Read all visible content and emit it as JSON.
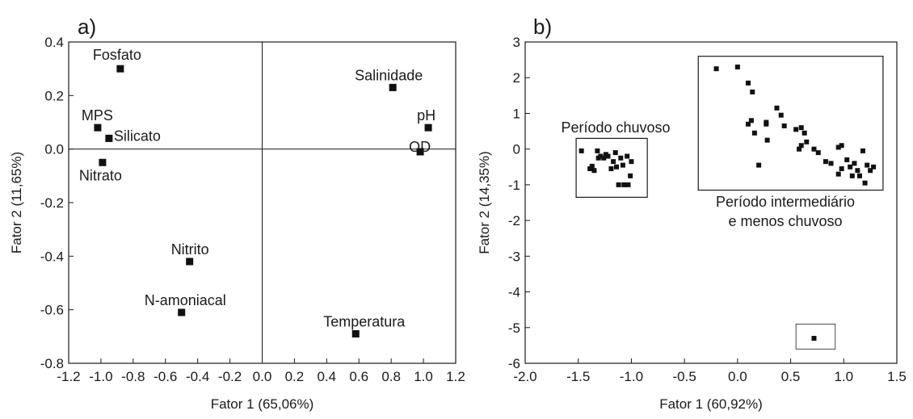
{
  "chart_data": [
    {
      "type": "scatter",
      "panel_label": "a)",
      "xlabel": "Fator 1 (65,06%)",
      "ylabel": "Fator 2 (11,65%)",
      "xlim": [
        -1.2,
        1.2
      ],
      "ylim": [
        -0.8,
        0.4
      ],
      "xticks": [
        -1.2,
        -1.0,
        -0.8,
        -0.6,
        -0.4,
        -0.2,
        0.0,
        0.2,
        0.4,
        0.6,
        0.8,
        1.0,
        1.2
      ],
      "xtick_labels": [
        "-1.2",
        "-1.0",
        "-0.8",
        "-0.6",
        "-0.4",
        "-0.2",
        "0.0",
        "0.2",
        "0.4",
        "0.6",
        "0.8",
        "1.0",
        "1.2"
      ],
      "yticks": [
        -0.8,
        -0.6,
        -0.4,
        -0.2,
        0.0,
        0.2,
        0.4
      ],
      "ytick_labels": [
        "-0.8",
        "-0.6",
        "-0.4",
        "-0.2",
        "0.0",
        "0.2",
        "0.4"
      ],
      "reference_lines": {
        "x": 0,
        "y": 0
      },
      "grid": false,
      "points": [
        {
          "label": "Fosfato",
          "x": -0.88,
          "y": 0.3
        },
        {
          "label": "MPS",
          "x": -1.02,
          "y": 0.08
        },
        {
          "label": "Silicato",
          "x": -0.95,
          "y": 0.04
        },
        {
          "label": "Nitrato",
          "x": -0.99,
          "y": -0.05
        },
        {
          "label": "Nitrito",
          "x": -0.45,
          "y": -0.42
        },
        {
          "label": "N-amoniacal",
          "x": -0.5,
          "y": -0.61
        },
        {
          "label": "Salinidade",
          "x": 0.81,
          "y": 0.23
        },
        {
          "label": "pH",
          "x": 1.03,
          "y": 0.08
        },
        {
          "label": "OD",
          "x": 0.98,
          "y": -0.01
        },
        {
          "label": "Temperatura",
          "x": 0.58,
          "y": -0.69
        }
      ]
    },
    {
      "type": "scatter",
      "panel_label": "b)",
      "xlabel": "Fator 1 (60,92%)",
      "ylabel": "Fator 2 (14,35%)",
      "xlim": [
        -2.0,
        1.5
      ],
      "ylim": [
        -6,
        3
      ],
      "xticks": [
        -2.0,
        -1.5,
        -1.0,
        -0.5,
        0.0,
        0.5,
        1.0,
        1.5
      ],
      "xtick_labels": [
        "-2.0",
        "-1.5",
        "-1.0",
        "-0.5",
        "0.0",
        "0.5",
        "1.0",
        "1.5"
      ],
      "yticks": [
        -6,
        -5,
        -4,
        -3,
        -2,
        -1,
        0,
        1,
        2,
        3
      ],
      "ytick_labels": [
        "-6",
        "-5",
        "-4",
        "-3",
        "-2",
        "-1",
        "0",
        "1",
        "2",
        "3"
      ],
      "grid": false,
      "groups": [
        {
          "label": "Período chuvoso",
          "box": {
            "x": [
              -1.52,
              -0.85
            ],
            "y": [
              -1.35,
              0.3
            ]
          }
        },
        {
          "label_lines": [
            "Período intermediário",
            "e menos chuvoso"
          ],
          "box": {
            "x": [
              -0.37,
              1.37
            ],
            "y": [
              -1.15,
              2.6
            ]
          }
        },
        {
          "label": "",
          "box": {
            "x": [
              0.55,
              0.92
            ],
            "y": [
              -5.6,
              -4.9
            ]
          }
        }
      ],
      "points": [
        {
          "x": -1.47,
          "y": -0.05
        },
        {
          "x": -1.39,
          "y": -0.55
        },
        {
          "x": -1.37,
          "y": -0.48
        },
        {
          "x": -1.35,
          "y": -0.6
        },
        {
          "x": -1.32,
          "y": -0.05
        },
        {
          "x": -1.31,
          "y": -0.25
        },
        {
          "x": -1.29,
          "y": -0.2
        },
        {
          "x": -1.26,
          "y": -0.25
        },
        {
          "x": -1.24,
          "y": -0.15
        },
        {
          "x": -1.22,
          "y": -0.2
        },
        {
          "x": -1.19,
          "y": -0.55
        },
        {
          "x": -1.17,
          "y": -0.35
        },
        {
          "x": -1.15,
          "y": -0.1
        },
        {
          "x": -1.14,
          "y": -0.5
        },
        {
          "x": -1.12,
          "y": -1.0
        },
        {
          "x": -1.1,
          "y": -0.25
        },
        {
          "x": -1.08,
          "y": -0.45
        },
        {
          "x": -1.07,
          "y": -1.0
        },
        {
          "x": -1.04,
          "y": -0.2
        },
        {
          "x": -1.03,
          "y": -1.0
        },
        {
          "x": -1.01,
          "y": -0.75
        },
        {
          "x": -1.0,
          "y": -0.35
        },
        {
          "x": -0.2,
          "y": 2.25
        },
        {
          "x": 0.0,
          "y": 2.3
        },
        {
          "x": 0.1,
          "y": 1.85
        },
        {
          "x": 0.14,
          "y": 1.6
        },
        {
          "x": 0.1,
          "y": 0.7
        },
        {
          "x": 0.13,
          "y": 0.8
        },
        {
          "x": 0.16,
          "y": 0.45
        },
        {
          "x": 0.2,
          "y": -0.45
        },
        {
          "x": 0.27,
          "y": 0.75
        },
        {
          "x": 0.27,
          "y": 0.7
        },
        {
          "x": 0.28,
          "y": 0.25
        },
        {
          "x": 0.37,
          "y": 1.15
        },
        {
          "x": 0.41,
          "y": 0.95
        },
        {
          "x": 0.44,
          "y": 0.65
        },
        {
          "x": 0.55,
          "y": 0.55
        },
        {
          "x": 0.6,
          "y": 0.6
        },
        {
          "x": 0.63,
          "y": 0.45
        },
        {
          "x": 0.58,
          "y": 0.0
        },
        {
          "x": 0.6,
          "y": 0.1
        },
        {
          "x": 0.65,
          "y": 0.2
        },
        {
          "x": 0.72,
          "y": 0.0
        },
        {
          "x": 0.76,
          "y": -0.1
        },
        {
          "x": 0.83,
          "y": -0.35
        },
        {
          "x": 0.88,
          "y": -0.4
        },
        {
          "x": 0.95,
          "y": 0.05
        },
        {
          "x": 0.98,
          "y": 0.1
        },
        {
          "x": 0.95,
          "y": -0.7
        },
        {
          "x": 0.98,
          "y": -0.55
        },
        {
          "x": 1.03,
          "y": -0.3
        },
        {
          "x": 1.06,
          "y": -0.5
        },
        {
          "x": 1.08,
          "y": -0.75
        },
        {
          "x": 1.1,
          "y": -0.4
        },
        {
          "x": 1.13,
          "y": -0.6
        },
        {
          "x": 1.15,
          "y": -0.75
        },
        {
          "x": 1.18,
          "y": -0.05
        },
        {
          "x": 1.2,
          "y": -0.95
        },
        {
          "x": 1.22,
          "y": -0.45
        },
        {
          "x": 1.25,
          "y": -0.6
        },
        {
          "x": 1.28,
          "y": -0.5
        },
        {
          "x": 0.72,
          "y": -5.3
        }
      ]
    }
  ]
}
